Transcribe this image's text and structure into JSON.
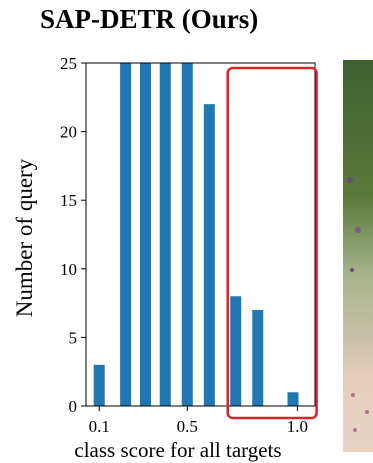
{
  "title": "SAP-DETR (Ours)",
  "chart_data": {
    "type": "bar",
    "title": "SAP-DETR (Ours)",
    "xlabel": "class score for all targets",
    "ylabel": "Number of query",
    "xticks": [
      "0.1",
      "0.5",
      "1.0"
    ],
    "xtick_values": [
      0.1,
      0.5,
      1.0
    ],
    "yticks": [
      0,
      5,
      10,
      15,
      20,
      25
    ],
    "ylim": [
      0,
      25
    ],
    "xlim": [
      0.04,
      1.08
    ],
    "bar_color": "#1f77b4",
    "highlight_color": "#d62728",
    "highlight_range": [
      0.72,
      1.06
    ],
    "bar_centers": [
      0.1,
      0.22,
      0.31,
      0.4,
      0.5,
      0.6,
      0.72,
      0.82,
      0.98
    ],
    "values": [
      3,
      25,
      25,
      25,
      25,
      22,
      8,
      7,
      1
    ],
    "grid": false
  }
}
